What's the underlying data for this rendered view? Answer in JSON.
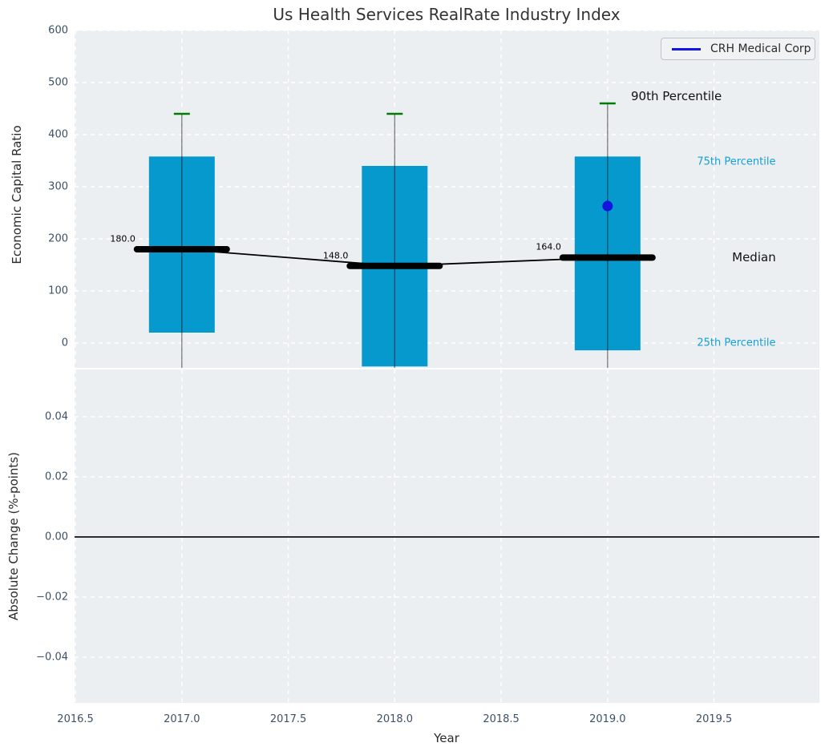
{
  "title": "Us Health Services RealRate Industry Index",
  "xlabel": "Year",
  "legend": {
    "label": "CRH Medical Corp"
  },
  "colors": {
    "box_fill": "#0599ce",
    "median_line": "#000000",
    "trend_line": "#000000",
    "whisker": "#000000",
    "percentile_cap": "#007d00",
    "company_point": "#1414e0",
    "legend_line": "#1414e0",
    "cyan_label": "#149fd6",
    "dark_label": "#111111",
    "axes_background": "#eceff1",
    "grid": "#ffffff",
    "tick_label": "#3d5166",
    "zero_line": "#000000"
  },
  "chart_data": {
    "type": "boxplot",
    "title": "Us Health Services RealRate Industry Index",
    "xlabel": "Year",
    "xlim": [
      2016.496,
      2019.995
    ],
    "xticks": [
      2016.5,
      2017.0,
      2017.5,
      2018.0,
      2018.5,
      2019.0,
      2019.5
    ],
    "xtick_labels": [
      "2016.5",
      "2017.0",
      "2017.5",
      "2018.0",
      "2018.5",
      "2019.0",
      "2019.5"
    ],
    "grid": "white dashed on light gray background",
    "legend_position": "upper right",
    "panels": {
      "top": {
        "ylabel": "Economic Capital Ratio",
        "ylim": [
          -47.7,
          600
        ],
        "yticks": [
          0,
          100,
          200,
          300,
          400,
          500,
          600
        ],
        "ytick_labels": [
          "0",
          "100",
          "200",
          "300",
          "400",
          "500",
          "600"
        ],
        "boxes": [
          {
            "year": 2017,
            "q1": 20,
            "median": 180,
            "q3": 358,
            "p90": 440,
            "median_label": "180.0",
            "whisker_low_clipped": true
          },
          {
            "year": 2018,
            "q1": -45,
            "median": 148,
            "q3": 340,
            "p90": 440,
            "median_label": "148.0",
            "whisker_low_clipped": true
          },
          {
            "year": 2019,
            "q1": -14,
            "median": 164,
            "q3": 358,
            "p90": 460,
            "median_label": "164.0",
            "whisker_low_clipped": true
          }
        ],
        "median_trend": [
          [
            2017,
            180
          ],
          [
            2018,
            148
          ],
          [
            2019,
            164
          ]
        ],
        "company_point": {
          "year": 2019,
          "value": 263,
          "series": "CRH Medical Corp"
        },
        "annotations": [
          {
            "text": "90th Percentile",
            "x": 2019.11,
            "y": 474,
            "style": "dark-large"
          },
          {
            "text": "75th Percentile",
            "x": 2019.42,
            "y": 348,
            "style": "cyan"
          },
          {
            "text": "Median",
            "x": 2019.585,
            "y": 164,
            "style": "dark-large"
          },
          {
            "text": "25th Percentile",
            "x": 2019.42,
            "y": 0,
            "style": "cyan"
          }
        ]
      },
      "bottom": {
        "ylabel": "Absolute Change (%-points)",
        "ylim": [
          -0.0552,
          0.0557
        ],
        "yticks": [
          0.04,
          0.02,
          0,
          -0.02,
          -0.04
        ],
        "ytick_labels": [
          "0.04",
          "0.02",
          "0.00",
          "−0.02",
          "−0.04"
        ],
        "zero_line": 0,
        "series": []
      }
    }
  }
}
